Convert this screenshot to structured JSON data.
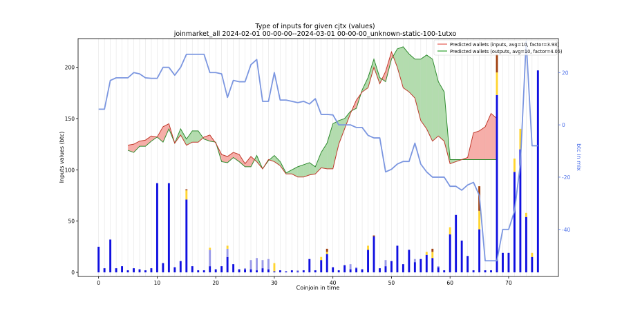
{
  "chart_data": {
    "type": "bar",
    "title": "Type of inputs for given cjtx (values)",
    "subtitle": "joinmarket_all 2024-02-01 00-00-00--2024-03-01 00-00-00_unknown-static-100-1utxo",
    "xlabel": "Coinjoin in time",
    "ylabel": "Inputs values (btc)",
    "y2label": "btc in mix",
    "xlim": [
      -3.5,
      78.5
    ],
    "ylim": [
      -4,
      228
    ],
    "y2lim": [
      -58,
      33
    ],
    "xticks": [
      0,
      10,
      20,
      30,
      40,
      50,
      60,
      70
    ],
    "yticks": [
      0,
      50,
      100,
      150,
      200
    ],
    "y2ticks": [
      -40,
      -20,
      0,
      20
    ],
    "grid": "vertical",
    "legend_position": "top-right",
    "legend": [
      "Predicted wallets (inputs, avg=10, factor=3.93)",
      "Predicted wallets (outputs, avg=10, factor=4.05)"
    ],
    "colors": {
      "input_line": "#c0392b",
      "input_fill": "#f4a09a",
      "output_line": "#2e8b2e",
      "output_fill": "#a6d6a0",
      "bar_main": "#1010e0",
      "bar_light": "#9a9ae8",
      "bar_yellow": "#ffd530",
      "bar_brown": "#a04010",
      "mix_line": "#7b96e0"
    },
    "bar_series": {
      "x": [
        0,
        1,
        2,
        3,
        4,
        5,
        6,
        7,
        8,
        9,
        10,
        11,
        12,
        13,
        14,
        15,
        16,
        17,
        18,
        19,
        20,
        21,
        22,
        23,
        24,
        25,
        26,
        27,
        28,
        29,
        30,
        31,
        32,
        33,
        34,
        35,
        36,
        37,
        38,
        39,
        40,
        41,
        42,
        43,
        44,
        45,
        46,
        47,
        48,
        49,
        50,
        51,
        52,
        53,
        54,
        55,
        56,
        57,
        58,
        59,
        60,
        61,
        62,
        63,
        64,
        65,
        66,
        67,
        68,
        69,
        70,
        71,
        72,
        73,
        74,
        75
      ],
      "main": [
        25,
        4,
        32,
        4,
        6,
        2,
        4,
        3,
        2,
        4,
        87,
        9,
        87,
        5,
        11,
        71,
        6,
        2,
        2,
        6,
        3,
        6,
        15,
        8,
        3,
        3,
        3,
        2,
        4,
        3,
        1,
        2,
        1,
        2,
        1,
        2,
        13,
        2,
        12,
        18,
        5,
        2,
        7,
        3,
        4,
        3,
        22,
        35,
        4,
        6,
        11,
        26,
        8,
        22,
        10,
        13,
        17,
        14,
        5,
        2,
        37,
        56,
        31,
        16,
        2,
        42,
        2,
        2,
        173,
        19,
        19,
        98,
        120,
        54,
        15,
        197
      ],
      "light": [
        0,
        0,
        0,
        0,
        0,
        0,
        0,
        0,
        0,
        0,
        0,
        0,
        0,
        0,
        0,
        0,
        0,
        0,
        0,
        16,
        0,
        0,
        8,
        0,
        0,
        1,
        9,
        12,
        8,
        10,
        0,
        0,
        0,
        0,
        1,
        0,
        0,
        0,
        0,
        0,
        0,
        0,
        0,
        5,
        1,
        0,
        0,
        0,
        0,
        6,
        0,
        0,
        0,
        0,
        3,
        0,
        0,
        0,
        1,
        0,
        0,
        0,
        0,
        0,
        0,
        0,
        0,
        0,
        0,
        0,
        0,
        0,
        0,
        0,
        0,
        0
      ],
      "yellow": [
        0,
        0,
        0,
        0,
        0,
        0,
        0,
        0,
        0,
        0,
        0,
        0,
        0,
        0,
        0,
        9,
        0,
        0,
        0,
        2,
        0,
        0,
        3,
        0,
        0,
        0,
        0,
        0,
        0,
        0,
        8,
        0,
        0,
        0,
        0,
        0,
        0,
        0,
        3,
        2,
        0,
        0,
        0,
        0,
        0,
        0,
        4,
        0,
        0,
        0,
        0,
        0,
        0,
        0,
        0,
        0,
        3,
        6,
        0,
        0,
        7,
        0,
        0,
        0,
        0,
        18,
        0,
        0,
        22,
        0,
        0,
        13,
        20,
        4,
        4,
        0
      ],
      "brown": [
        0,
        0,
        0,
        0,
        0,
        0,
        0,
        0,
        0,
        0,
        0,
        0,
        0,
        0,
        0,
        1,
        0,
        0,
        0,
        0,
        0,
        0,
        0,
        0,
        0,
        0,
        0,
        0,
        0,
        0,
        0,
        0,
        0,
        0,
        0,
        0,
        0,
        0,
        0,
        3,
        0,
        0,
        0,
        0,
        0,
        0,
        0,
        1,
        0,
        0,
        0,
        0,
        0,
        0,
        0,
        0,
        0,
        3,
        0,
        0,
        0,
        0,
        0,
        0,
        0,
        24,
        0,
        0,
        18,
        0,
        0,
        0,
        0,
        0,
        0,
        0
      ]
    },
    "band_x": [
      5,
      6,
      7,
      8,
      9,
      10,
      11,
      12,
      13,
      14,
      15,
      16,
      17,
      18,
      19,
      20,
      21,
      22,
      23,
      24,
      25,
      26,
      27,
      28,
      29,
      30,
      31,
      32,
      33,
      34,
      35,
      36,
      37,
      38,
      39,
      40,
      41,
      42,
      43,
      44,
      45,
      46,
      47,
      48,
      49,
      50,
      51,
      52,
      53,
      54,
      55,
      56,
      57,
      58,
      59,
      60,
      61,
      62,
      63,
      64,
      65,
      66,
      67,
      68
    ],
    "inputs_band": [
      124,
      125,
      128,
      129,
      133,
      132,
      142,
      145,
      126,
      134,
      124,
      127,
      127,
      132,
      134,
      126,
      115,
      113,
      117,
      115,
      106,
      113,
      108,
      101,
      110,
      108,
      104,
      96,
      96,
      93,
      93,
      95,
      96,
      102,
      101,
      101,
      125,
      140,
      155,
      168,
      176,
      180,
      200,
      184,
      196,
      215,
      200,
      180,
      176,
      170,
      148,
      140,
      128,
      133,
      128,
      106,
      108,
      110,
      112,
      136,
      138,
      142,
      155,
      150
    ],
    "outputs_band": [
      119,
      117,
      123,
      123,
      128,
      132,
      127,
      140,
      126,
      140,
      130,
      138,
      138,
      130,
      128,
      127,
      108,
      107,
      112,
      108,
      103,
      103,
      114,
      101,
      109,
      114,
      108,
      97,
      100,
      103,
      105,
      107,
      103,
      117,
      126,
      145,
      148,
      150,
      157,
      160,
      178,
      190,
      208,
      190,
      186,
      208,
      218,
      220,
      213,
      208,
      208,
      212,
      208,
      186,
      176,
      110,
      110,
      110,
      110,
      110,
      110,
      110,
      110,
      110
    ],
    "mix_series": {
      "x": [
        0,
        1,
        2,
        3,
        4,
        5,
        6,
        7,
        8,
        9,
        10,
        11,
        12,
        13,
        14,
        15,
        16,
        17,
        18,
        19,
        20,
        21,
        22,
        23,
        24,
        25,
        26,
        27,
        28,
        29,
        30,
        31,
        32,
        33,
        34,
        35,
        36,
        37,
        38,
        39,
        40,
        41,
        42,
        43,
        44,
        45,
        46,
        47,
        48,
        49,
        50,
        51,
        52,
        53,
        54,
        55,
        56,
        57,
        58,
        59,
        60,
        61,
        62,
        63,
        64,
        65,
        66,
        67,
        68,
        69,
        70,
        71,
        72,
        73,
        74,
        75
      ],
      "y": [
        6,
        6,
        17,
        18,
        18,
        18,
        20,
        19.5,
        18,
        17.8,
        17.8,
        22,
        22,
        19,
        22,
        27,
        27,
        27,
        27,
        20,
        20,
        19.5,
        10.5,
        17,
        16.5,
        16.5,
        23,
        25,
        9,
        9,
        20,
        9.5,
        9.5,
        9,
        8.5,
        9,
        8,
        10,
        4,
        4,
        3.8,
        0,
        0,
        0,
        -1,
        -1,
        -4,
        -5,
        -5,
        -18,
        -17,
        -15,
        -14,
        -14,
        -7,
        -15,
        -18,
        -20,
        -20,
        -20,
        -23.5,
        -23.5,
        -25,
        -23,
        -22,
        -27,
        -52,
        -52,
        -52,
        -40,
        -40,
        -33,
        -15,
        32,
        -8,
        -8
      ]
    }
  }
}
